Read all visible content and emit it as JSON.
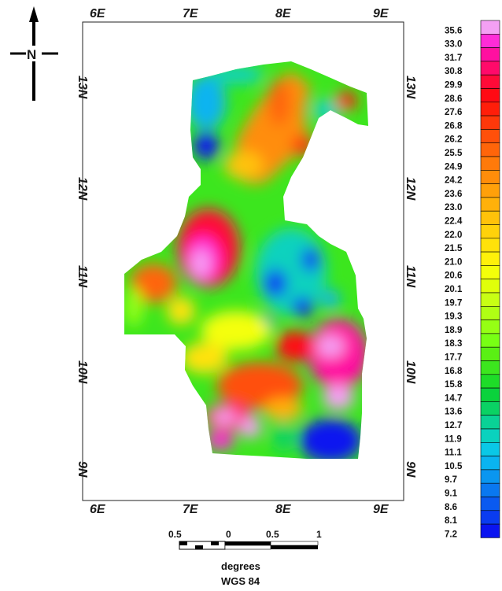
{
  "map": {
    "top_lon_ticks": [
      "6E",
      "7E",
      "8E",
      "9E"
    ],
    "bottom_lon_ticks": [
      "6E",
      "7E",
      "8E",
      "9E"
    ],
    "left_lat_ticks": [
      "13N",
      "12N",
      "11N",
      "10N",
      "9N"
    ],
    "right_lat_ticks": [
      "13N",
      "12N",
      "11N",
      "10N",
      "9N"
    ]
  },
  "north_arrow": {
    "label": "N"
  },
  "legend": {
    "values": [
      "35.6",
      "33.0",
      "31.7",
      "30.8",
      "29.9",
      "28.6",
      "27.6",
      "26.8",
      "26.2",
      "25.5",
      "24.9",
      "24.2",
      "23.6",
      "23.0",
      "22.4",
      "22.0",
      "21.5",
      "21.0",
      "20.6",
      "20.1",
      "19.7",
      "19.3",
      "18.9",
      "18.3",
      "17.7",
      "16.8",
      "15.8",
      "14.7",
      "13.6",
      "12.7",
      "11.9",
      "11.1",
      "10.5",
      "9.7",
      "9.1",
      "8.6",
      "8.1",
      "7.2"
    ],
    "colors": [
      "#f4a0f4",
      "#ff2cd8",
      "#ff10a0",
      "#ff0a6a",
      "#ff0a38",
      "#ff0a14",
      "#ff1e0a",
      "#ff380a",
      "#ff500a",
      "#ff650a",
      "#ff7a0a",
      "#ff8d0a",
      "#ffa00a",
      "#ffb10a",
      "#ffc20a",
      "#ffd20a",
      "#ffe20a",
      "#fff10a",
      "#f4ff0a",
      "#e0ff0a",
      "#c8ff14",
      "#b0ff14",
      "#96ff14",
      "#78ff14",
      "#5af014",
      "#3ce61e",
      "#1edc28",
      "#0ad23c",
      "#0ad264",
      "#0ad296",
      "#0ad2be",
      "#0ac8e6",
      "#0ab4f0",
      "#0a96f0",
      "#0a78f0",
      "#0a5af0",
      "#0a3cf0",
      "#0a14f0"
    ]
  },
  "scale_bar": {
    "labels": [
      "0.5",
      "0",
      "0.5",
      "1"
    ],
    "unit": "degrees",
    "datum": "WGS 84"
  }
}
